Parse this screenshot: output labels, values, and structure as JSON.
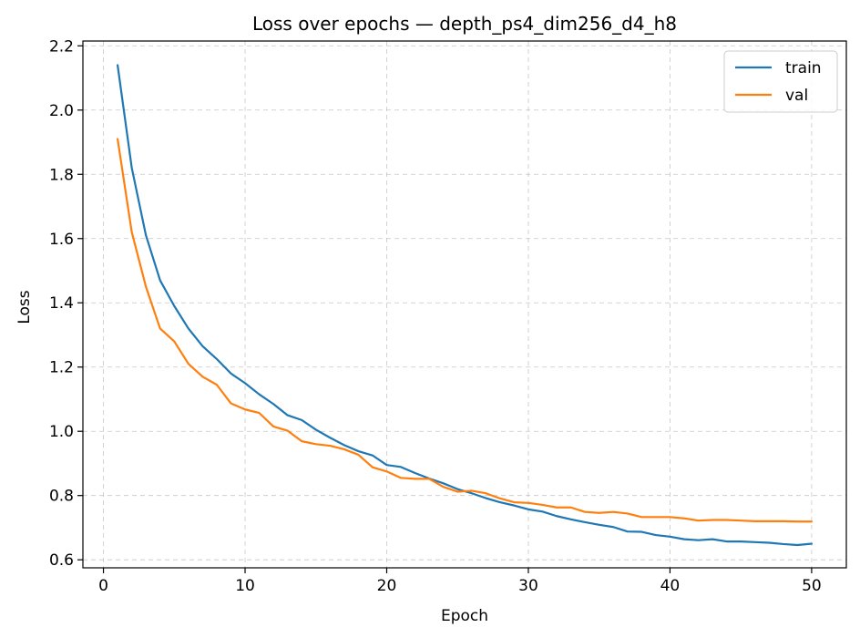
{
  "chart_data": {
    "type": "line",
    "title": "Loss over epochs — depth_ps4_dim256_d4_h8",
    "xlabel": "Epoch",
    "ylabel": "Loss",
    "xlim": [
      -1.45,
      52.45
    ],
    "ylim": [
      0.575,
      2.215
    ],
    "xticks": [
      0,
      10,
      20,
      30,
      40,
      50
    ],
    "yticks": [
      0.6,
      0.8,
      1.0,
      1.2,
      1.4,
      1.6,
      1.8,
      2.0,
      2.2
    ],
    "ytick_labels": [
      "0.6",
      "0.8",
      "1.0",
      "1.2",
      "1.4",
      "1.6",
      "1.8",
      "2.0",
      "2.2"
    ],
    "grid": true,
    "legend_position": "top-right",
    "x": [
      1,
      2,
      3,
      4,
      5,
      6,
      7,
      8,
      9,
      10,
      11,
      12,
      13,
      14,
      15,
      16,
      17,
      18,
      19,
      20,
      21,
      22,
      23,
      24,
      25,
      26,
      27,
      28,
      29,
      30,
      31,
      32,
      33,
      34,
      35,
      36,
      37,
      38,
      39,
      40,
      41,
      42,
      43,
      44,
      45,
      46,
      47,
      48,
      49,
      50
    ],
    "series": [
      {
        "name": "train",
        "color": "#1f77b4",
        "values": [
          2.14,
          1.82,
          1.61,
          1.47,
          1.39,
          1.32,
          1.265,
          1.225,
          1.18,
          1.15,
          1.115,
          1.085,
          1.05,
          1.035,
          1.005,
          0.98,
          0.957,
          0.938,
          0.925,
          0.895,
          0.889,
          0.87,
          0.853,
          0.838,
          0.82,
          0.807,
          0.792,
          0.779,
          0.769,
          0.757,
          0.75,
          0.736,
          0.726,
          0.717,
          0.709,
          0.702,
          0.688,
          0.687,
          0.677,
          0.672,
          0.664,
          0.661,
          0.664,
          0.657,
          0.657,
          0.655,
          0.653,
          0.649,
          0.646,
          0.65
        ]
      },
      {
        "name": "val",
        "color": "#ff7f0e",
        "values": [
          1.91,
          1.62,
          1.45,
          1.32,
          1.28,
          1.21,
          1.17,
          1.145,
          1.087,
          1.068,
          1.057,
          1.015,
          1.002,
          0.969,
          0.96,
          0.955,
          0.944,
          0.927,
          0.888,
          0.875,
          0.855,
          0.852,
          0.852,
          0.827,
          0.812,
          0.815,
          0.807,
          0.791,
          0.779,
          0.777,
          0.771,
          0.763,
          0.763,
          0.749,
          0.746,
          0.749,
          0.744,
          0.733,
          0.733,
          0.733,
          0.729,
          0.722,
          0.724,
          0.724,
          0.722,
          0.72,
          0.72,
          0.72,
          0.719,
          0.719
        ]
      }
    ]
  }
}
